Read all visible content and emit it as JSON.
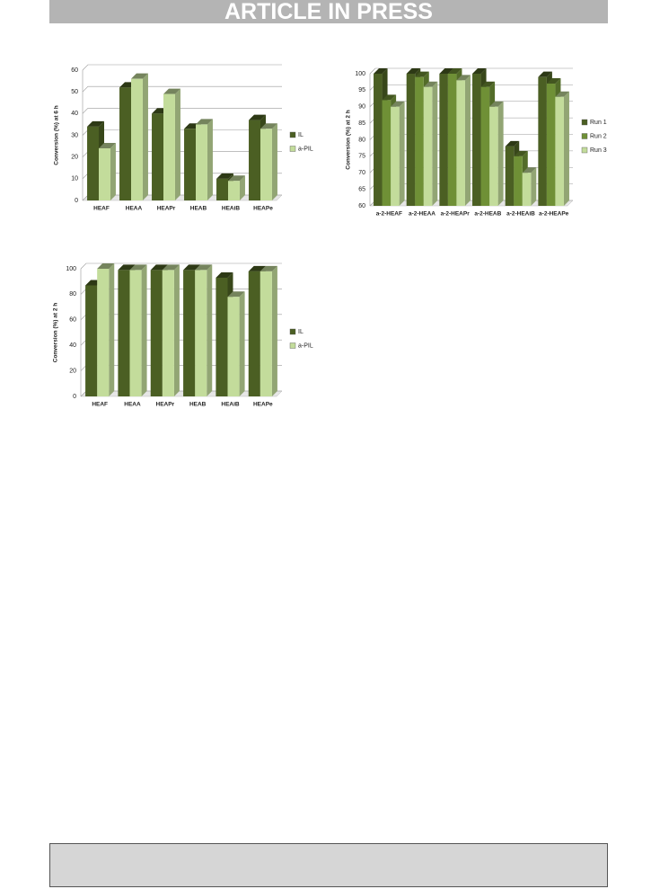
{
  "header": {
    "title": "ARTICLE IN PRESS"
  },
  "chart_data": [
    {
      "type": "bar",
      "y_label": "Conversion (%) at 6 h",
      "categories": [
        "HEAF",
        "HEAA",
        "HEAPr",
        "HEAB",
        "HEAiB",
        "HEAPe"
      ],
      "series": [
        {
          "name": "IL",
          "color": "#4b5f23",
          "values": [
            34,
            52,
            40,
            33,
            10,
            37
          ]
        },
        {
          "name": "a-PIL",
          "color": "#c3dc9b",
          "values": [
            24,
            56,
            49,
            35,
            9,
            33
          ]
        }
      ],
      "ylim": [
        0,
        60
      ],
      "yticks": [
        0,
        10,
        20,
        30,
        40,
        50,
        60
      ],
      "grid": true,
      "legend": "right"
    },
    {
      "type": "bar",
      "y_label": "Conversion (%) at 2 h",
      "categories": [
        "a-2-HEAF",
        "a-2-HEAA",
        "a-2-HEAPr",
        "a-2-HEAB",
        "a-2-HEAiB",
        "a-2-HEAPe"
      ],
      "series": [
        {
          "name": "Run 1",
          "color": "#4b5f23",
          "values": [
            100,
            100,
            100,
            100,
            78,
            99
          ]
        },
        {
          "name": "Run 2",
          "color": "#6f9036",
          "values": [
            92,
            99,
            100,
            96,
            75,
            97
          ]
        },
        {
          "name": "Run 3",
          "color": "#c3dc9b",
          "values": [
            90,
            96,
            98,
            90,
            70,
            93
          ]
        }
      ],
      "ylim": [
        60,
        100
      ],
      "yticks": [
        60,
        65,
        70,
        75,
        80,
        85,
        90,
        95,
        100
      ],
      "grid": true,
      "legend": "right"
    },
    {
      "type": "bar",
      "y_label": "Conversion (%) at 2 h",
      "categories": [
        "HEAF",
        "HEAA",
        "HEAPr",
        "HEAB",
        "HEAiB",
        "HEAPe"
      ],
      "series": [
        {
          "name": "IL",
          "color": "#4b5f23",
          "values": [
            87,
            99,
            99,
            99,
            93,
            98
          ]
        },
        {
          "name": "a-PIL",
          "color": "#c3dc9b",
          "values": [
            100,
            99,
            99,
            99,
            78,
            98
          ]
        }
      ],
      "ylim": [
        0,
        100
      ],
      "yticks": [
        0,
        20,
        40,
        60,
        80,
        100
      ],
      "grid": true,
      "legend": "right"
    }
  ]
}
